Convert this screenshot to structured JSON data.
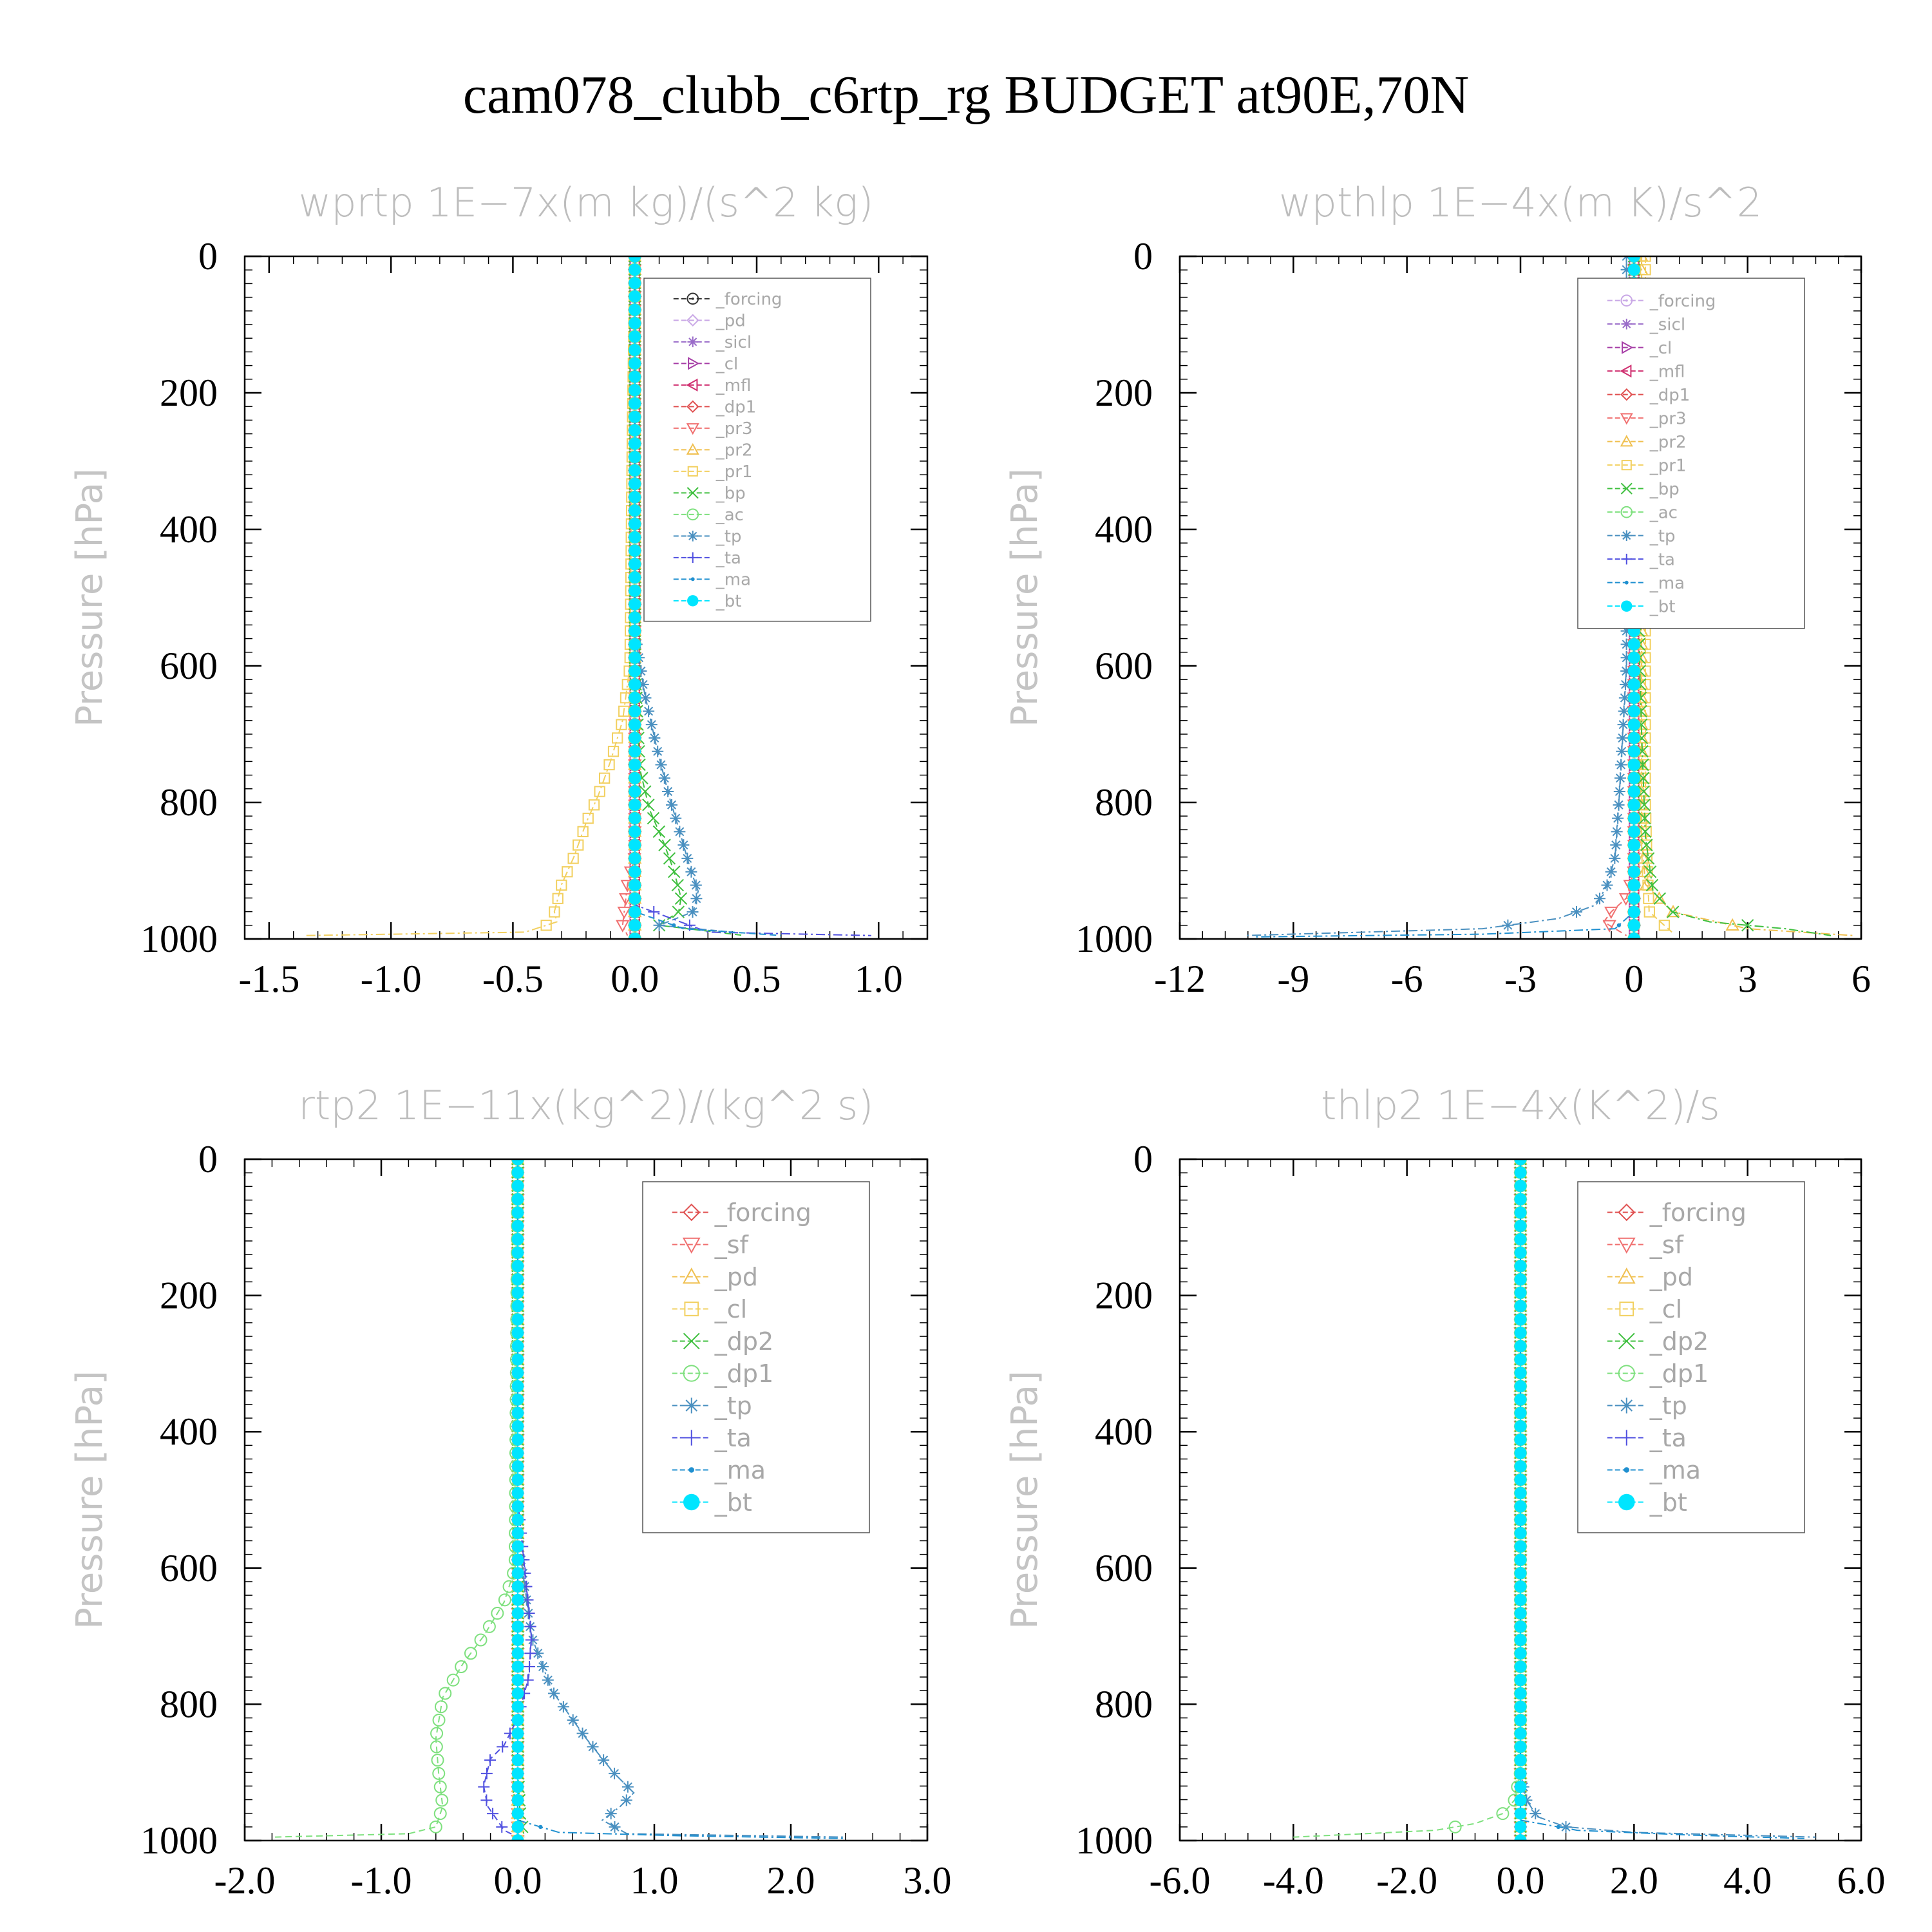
{
  "figure": {
    "title": "cam078_clubb_c6rtp_rg  BUDGET at90E,70N"
  },
  "chart_data": [
    {
      "type": "line",
      "title": "wprtp   1E−7x(m kg)/(s^2 kg)",
      "ylabel": "Pressure [hPa]",
      "xlim": [
        -1.6,
        1.2
      ],
      "ylim": [
        1000,
        0
      ],
      "xticks": [
        "-1.5",
        "-1.0",
        "-0.5",
        "0.0",
        "0.5",
        "1.0"
      ],
      "xtick_values": [
        -1.5,
        -1.0,
        -0.5,
        0.0,
        0.5,
        1.0
      ],
      "yticks": [
        "0",
        "200",
        "400",
        "600",
        "800",
        "1000"
      ],
      "ytick_values": [
        0,
        200,
        400,
        600,
        800,
        1000
      ],
      "legend_placement": "top-right",
      "series": [
        {
          "name": "_forcing",
          "color": "#333333",
          "marker": "circle-dot",
          "x": [
            0,
            0
          ],
          "y": [
            0,
            1000
          ]
        },
        {
          "name": "_pd",
          "color": "#c9a8e6",
          "marker": "diamond",
          "x": [
            0,
            0
          ],
          "y": [
            0,
            1000
          ]
        },
        {
          "name": "_sicl",
          "color": "#9a6cc9",
          "marker": "star",
          "x": [
            0,
            0
          ],
          "y": [
            0,
            1000
          ]
        },
        {
          "name": "_cl",
          "color": "#a63da6",
          "marker": "triangle-right",
          "x": [
            0,
            0
          ],
          "y": [
            0,
            1000
          ]
        },
        {
          "name": "_mfl",
          "color": "#d03070",
          "marker": "triangle-left",
          "x": [
            0,
            0
          ],
          "y": [
            0,
            1000
          ]
        },
        {
          "name": "_dp1",
          "color": "#e05050",
          "marker": "diamond",
          "x": [
            0,
            0
          ],
          "y": [
            0,
            1000
          ]
        },
        {
          "name": "_pr3",
          "color": "#f07070",
          "marker": "triangle-down",
          "x": [
            0,
            0,
            0,
            -0.03,
            -0.04,
            -0.05,
            -0.03
          ],
          "y": [
            0,
            800,
            880,
            920,
            950,
            980,
            995
          ]
        },
        {
          "name": "_pr2",
          "color": "#f0c050",
          "marker": "triangle-up",
          "x": [
            0,
            0,
            0,
            0,
            0
          ],
          "y": [
            0,
            200,
            500,
            900,
            995
          ]
        },
        {
          "name": "_pr1",
          "color": "#f2d060",
          "marker": "square",
          "x": [
            0,
            -0.01,
            -0.02,
            -0.05,
            -0.1,
            -0.15,
            -0.2,
            -0.25,
            -0.3,
            -0.33,
            -0.32,
            -0.45,
            -1.35
          ],
          "y": [
            0,
            250,
            600,
            680,
            740,
            790,
            830,
            880,
            920,
            960,
            975,
            990,
            995
          ]
        },
        {
          "name": "_bp",
          "color": "#40c040",
          "marker": "x",
          "x": [
            0,
            0,
            0.02,
            0.06,
            0.12,
            0.16,
            0.19,
            0.18,
            0.1,
            0.45
          ],
          "y": [
            0,
            600,
            750,
            810,
            860,
            900,
            940,
            960,
            980,
            995
          ]
        },
        {
          "name": "_ac",
          "color": "#7ee07e",
          "marker": "circle",
          "x": [
            0,
            0
          ],
          "y": [
            0,
            1000
          ]
        },
        {
          "name": "_tp",
          "color": "#4a90c0",
          "marker": "asterisk",
          "x": [
            0,
            0,
            0.04,
            0.09,
            0.14,
            0.19,
            0.23,
            0.26,
            0.24,
            0.1,
            0.4
          ],
          "y": [
            0,
            550,
            640,
            720,
            790,
            850,
            900,
            930,
            960,
            980,
            990
          ]
        },
        {
          "name": "_ta",
          "color": "#5050e0",
          "marker": "plus",
          "x": [
            0,
            0,
            0.3,
            0.97
          ],
          "y": [
            0,
            950,
            990,
            995
          ]
        },
        {
          "name": "_ma",
          "color": "#2090d0",
          "marker": "dot",
          "x": [
            0,
            0,
            0.2,
            0.6
          ],
          "y": [
            0,
            960,
            985,
            995
          ]
        },
        {
          "name": "_bt",
          "color": "#00e5ff",
          "marker": "filled-circle",
          "x": [
            0,
            0
          ],
          "y": [
            0,
            1000
          ]
        }
      ]
    },
    {
      "type": "line",
      "title": "wpthlp   1E−4x(m K)/s^2",
      "ylabel": "Pressure [hPa]",
      "xlim": [
        -12,
        6
      ],
      "ylim": [
        1000,
        0
      ],
      "xticks": [
        "-12",
        "-9",
        "-6",
        "-3",
        "0",
        "3",
        "6"
      ],
      "xtick_values": [
        -12,
        -9,
        -6,
        -3,
        0,
        3,
        6
      ],
      "yticks": [
        "0",
        "200",
        "400",
        "600",
        "800",
        "1000"
      ],
      "ytick_values": [
        0,
        200,
        400,
        600,
        800,
        1000
      ],
      "legend_placement": "top-right",
      "series": [
        {
          "name": "_forcing",
          "color": "#c9a8e6",
          "marker": "circle-dot",
          "x": [
            0,
            0
          ],
          "y": [
            0,
            1000
          ]
        },
        {
          "name": "_sicl",
          "color": "#9a6cc9",
          "marker": "star",
          "x": [
            0,
            0
          ],
          "y": [
            0,
            1000
          ]
        },
        {
          "name": "_cl",
          "color": "#a63da6",
          "marker": "triangle-right",
          "x": [
            0,
            0
          ],
          "y": [
            0,
            1000
          ]
        },
        {
          "name": "_mfl",
          "color": "#d03070",
          "marker": "triangle-left",
          "x": [
            0,
            0
          ],
          "y": [
            0,
            1000
          ]
        },
        {
          "name": "_dp1",
          "color": "#e05050",
          "marker": "diamond",
          "x": [
            0,
            0
          ],
          "y": [
            0,
            1000
          ]
        },
        {
          "name": "_pr3",
          "color": "#f07070",
          "marker": "triangle-down",
          "x": [
            0,
            0,
            -0.2,
            -0.6,
            -0.8,
            -0.5,
            -0.2
          ],
          "y": [
            0,
            900,
            940,
            960,
            975,
            985,
            995
          ]
        },
        {
          "name": "_pr2",
          "color": "#f0c050",
          "marker": "triangle-up",
          "x": [
            0.2,
            0.2,
            0.3,
            1.0,
            3.0,
            5.8
          ],
          "y": [
            0,
            850,
            920,
            960,
            985,
            995
          ]
        },
        {
          "name": "_pr1",
          "color": "#f2d060",
          "marker": "square",
          "x": [
            0.3,
            0.3,
            0.35,
            0.4,
            1.0
          ],
          "y": [
            0,
            800,
            900,
            960,
            990
          ]
        },
        {
          "name": "_bp",
          "color": "#40c040",
          "marker": "x",
          "x": [
            0,
            0.1,
            0.2,
            0.3,
            0.5,
            1.0,
            2.0,
            4.0,
            5.2
          ],
          "y": [
            0,
            500,
            700,
            850,
            930,
            960,
            975,
            985,
            995
          ]
        },
        {
          "name": "_ac",
          "color": "#7ee07e",
          "marker": "circle",
          "x": [
            0,
            0
          ],
          "y": [
            0,
            1000
          ]
        },
        {
          "name": "_tp",
          "color": "#4a90c0",
          "marker": "asterisk",
          "x": [
            -0.2,
            -0.2,
            -0.3,
            -0.4,
            -0.5,
            -0.7,
            -1.0,
            -2.0,
            -4.0,
            -10.3
          ],
          "y": [
            0,
            600,
            700,
            800,
            880,
            920,
            950,
            970,
            985,
            995
          ]
        },
        {
          "name": "_ta",
          "color": "#5050e0",
          "marker": "plus",
          "x": [
            0,
            0
          ],
          "y": [
            0,
            1000
          ]
        },
        {
          "name": "_ma",
          "color": "#2090d0",
          "marker": "dot",
          "x": [
            0,
            0,
            -0.5,
            -4.0,
            -10.0
          ],
          "y": [
            0,
            960,
            985,
            993,
            997
          ]
        },
        {
          "name": "_bt",
          "color": "#00e5ff",
          "marker": "filled-circle",
          "x": [
            0,
            0
          ],
          "y": [
            0,
            1000
          ]
        }
      ]
    },
    {
      "type": "line",
      "title": "rtp2   1E−11x(kg^2)/(kg^2 s)",
      "ylabel": "Pressure [hPa]",
      "xlim": [
        -2.0,
        3.0
      ],
      "ylim": [
        1000,
        0
      ],
      "xticks": [
        "-2.0",
        "-1.0",
        "0.0",
        "1.0",
        "2.0",
        "3.0"
      ],
      "xtick_values": [
        -2.0,
        -1.0,
        0.0,
        1.0,
        2.0,
        3.0
      ],
      "yticks": [
        "0",
        "200",
        "400",
        "600",
        "800",
        "1000"
      ],
      "ytick_values": [
        0,
        200,
        400,
        600,
        800,
        1000
      ],
      "legend_placement": "top-right",
      "series": [
        {
          "name": "_forcing",
          "color": "#e05050",
          "marker": "diamond",
          "x": [
            0,
            0
          ],
          "y": [
            0,
            1000
          ]
        },
        {
          "name": "_sf",
          "color": "#f07070",
          "marker": "triangle-down",
          "x": [
            0,
            0
          ],
          "y": [
            0,
            1000
          ]
        },
        {
          "name": "_pd",
          "color": "#f0c050",
          "marker": "triangle-up",
          "x": [
            0,
            0
          ],
          "y": [
            0,
            1000
          ]
        },
        {
          "name": "_cl",
          "color": "#f2d060",
          "marker": "square",
          "x": [
            0,
            0
          ],
          "y": [
            0,
            1000
          ]
        },
        {
          "name": "_dp2",
          "color": "#40c040",
          "marker": "x",
          "x": [
            0,
            0,
            0.02,
            0.05
          ],
          "y": [
            0,
            900,
            970,
            995
          ]
        },
        {
          "name": "_dp1",
          "color": "#7ee07e",
          "marker": "circle",
          "x": [
            0,
            -0.02,
            -0.1,
            -0.25,
            -0.4,
            -0.55,
            -0.6,
            -0.58,
            -0.55,
            -0.6,
            -0.8,
            -1.8
          ],
          "y": [
            0,
            600,
            650,
            700,
            740,
            790,
            850,
            900,
            950,
            980,
            990,
            995
          ]
        },
        {
          "name": "_tp",
          "color": "#4a90c0",
          "marker": "asterisk",
          "x": [
            0,
            0,
            0.1,
            0.25,
            0.5,
            0.7,
            0.85,
            0.75,
            0.62,
            0.8,
            2.4
          ],
          "y": [
            0,
            550,
            700,
            780,
            850,
            900,
            930,
            950,
            970,
            990,
            995
          ]
        },
        {
          "name": "_ta",
          "color": "#5050e0",
          "marker": "plus",
          "x": [
            0,
            0,
            0.05,
            0.1,
            0.08,
            0,
            -0.1,
            -0.2,
            -0.25,
            -0.22,
            -0.15,
            -0.1,
            0
          ],
          "y": [
            0,
            500,
            600,
            700,
            760,
            820,
            860,
            880,
            920,
            950,
            970,
            985,
            995
          ]
        },
        {
          "name": "_ma",
          "color": "#2090d0",
          "marker": "dot",
          "x": [
            0,
            0,
            0.3,
            1.2,
            2.4
          ],
          "y": [
            0,
            970,
            988,
            993,
            997
          ]
        },
        {
          "name": "_bt",
          "color": "#00e5ff",
          "marker": "filled-circle",
          "x": [
            0,
            0
          ],
          "y": [
            0,
            1000
          ]
        }
      ]
    },
    {
      "type": "line",
      "title": "thlp2   1E−4x(K^2)/s",
      "ylabel": "Pressure [hPa]",
      "xlim": [
        -6.0,
        6.0
      ],
      "ylim": [
        1000,
        0
      ],
      "xticks": [
        "-6.0",
        "-4.0",
        "-2.0",
        "0.0",
        "2.0",
        "4.0",
        "6.0"
      ],
      "xtick_values": [
        -6.0,
        -4.0,
        -2.0,
        0.0,
        2.0,
        4.0,
        6.0
      ],
      "yticks": [
        "0",
        "200",
        "400",
        "600",
        "800",
        "1000"
      ],
      "ytick_values": [
        0,
        200,
        400,
        600,
        800,
        1000
      ],
      "legend_placement": "top-right",
      "series": [
        {
          "name": "_forcing",
          "color": "#e05050",
          "marker": "diamond",
          "x": [
            0,
            0
          ],
          "y": [
            0,
            1000
          ]
        },
        {
          "name": "_sf",
          "color": "#f07070",
          "marker": "triangle-down",
          "x": [
            0,
            0
          ],
          "y": [
            0,
            1000
          ]
        },
        {
          "name": "_pd",
          "color": "#f0c050",
          "marker": "triangle-up",
          "x": [
            0,
            0
          ],
          "y": [
            0,
            1000
          ]
        },
        {
          "name": "_cl",
          "color": "#f2d060",
          "marker": "square",
          "x": [
            0,
            0
          ],
          "y": [
            0,
            1000
          ]
        },
        {
          "name": "_dp2",
          "color": "#40c040",
          "marker": "x",
          "x": [
            0,
            0
          ],
          "y": [
            0,
            1000
          ]
        },
        {
          "name": "_dp1",
          "color": "#7ee07e",
          "marker": "circle",
          "x": [
            0,
            0,
            -0.1,
            -0.3,
            -0.8,
            -1.5,
            -4.0
          ],
          "y": [
            0,
            900,
            940,
            960,
            975,
            985,
            995
          ]
        },
        {
          "name": "_tp",
          "color": "#4a90c0",
          "marker": "asterisk",
          "x": [
            0,
            0,
            0.1,
            0.3,
            0.8,
            2.0,
            5.2
          ],
          "y": [
            0,
            900,
            940,
            965,
            980,
            988,
            995
          ]
        },
        {
          "name": "_ta",
          "color": "#5050e0",
          "marker": "plus",
          "x": [
            0,
            0
          ],
          "y": [
            0,
            1000
          ]
        },
        {
          "name": "_ma",
          "color": "#2090d0",
          "marker": "dot",
          "x": [
            0,
            0,
            1.0,
            3.0,
            5.0
          ],
          "y": [
            0,
            970,
            985,
            992,
            997
          ]
        },
        {
          "name": "_bt",
          "color": "#00e5ff",
          "marker": "filled-circle",
          "x": [
            0,
            0
          ],
          "y": [
            0,
            1000
          ]
        }
      ]
    }
  ]
}
